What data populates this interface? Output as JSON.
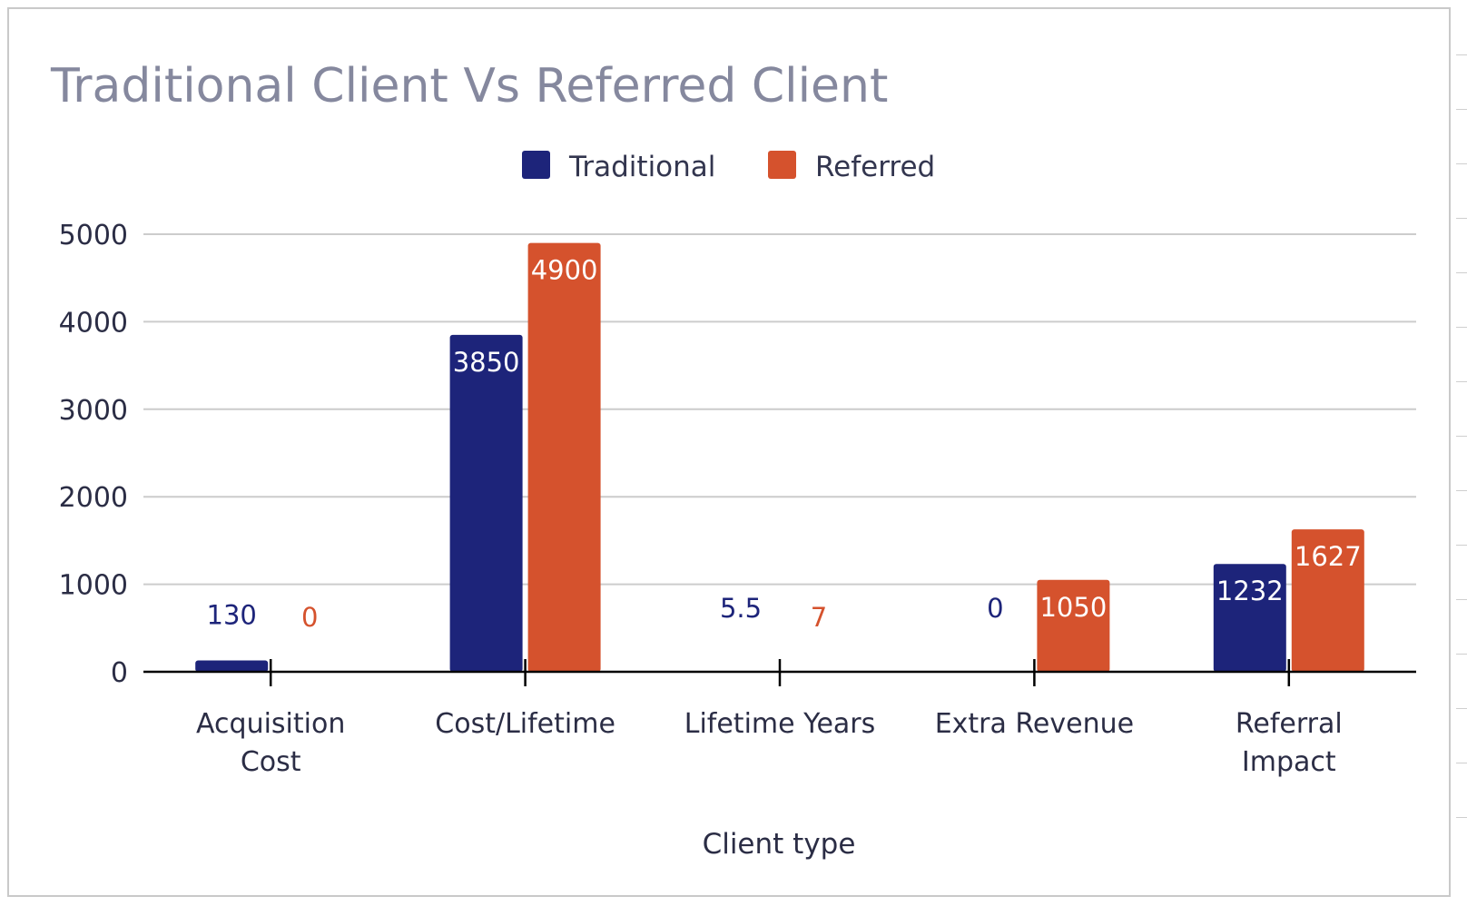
{
  "chart_data": {
    "type": "bar",
    "title": "Traditional Client Vs Referred Client",
    "xlabel": "Client type",
    "ylabel": "",
    "ylim": [
      0,
      5000
    ],
    "yticks": [
      0,
      1000,
      2000,
      3000,
      4000,
      5000
    ],
    "grid": true,
    "legend_position": "top",
    "categories": [
      [
        "Acquisition",
        "Cost"
      ],
      [
        "Cost/Lifetime"
      ],
      [
        "Lifetime Years"
      ],
      [
        "Extra Revenue"
      ],
      [
        "Referral",
        "Impact"
      ]
    ],
    "series": [
      {
        "name": "Traditional",
        "color": "#1d247a",
        "values": [
          130,
          3850,
          5.5,
          0,
          1232
        ],
        "labels": [
          "130",
          "3850",
          "5.5",
          "0",
          "1232"
        ]
      },
      {
        "name": "Referred",
        "color": "#d5522d",
        "values": [
          0,
          4900,
          7,
          1050,
          1627
        ],
        "labels": [
          "0",
          "4900",
          "7",
          "1050",
          "1627"
        ]
      }
    ],
    "gridline_color": "#cccccc",
    "axis_color": "#000000"
  }
}
